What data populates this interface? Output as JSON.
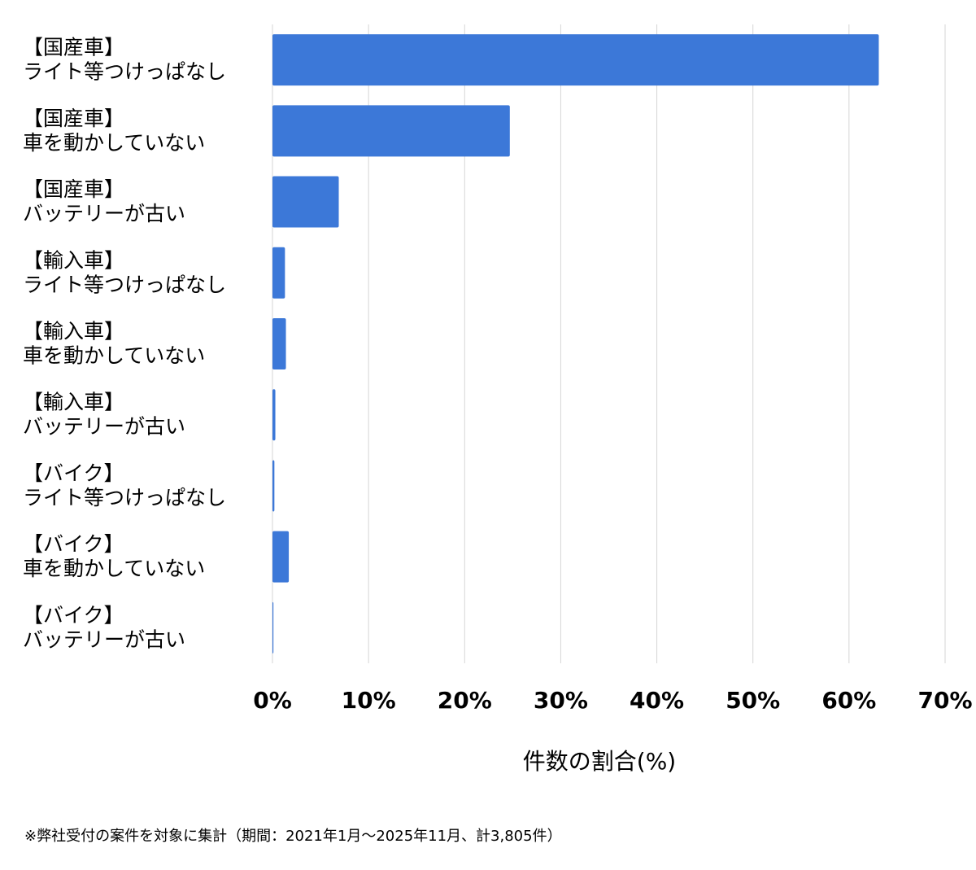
{
  "chart_data": {
    "type": "hbar",
    "categories": [
      [
        "【国産車】",
        "ライト等つけっぱなし"
      ],
      [
        "【国産車】",
        "車を動かしていない"
      ],
      [
        "【国産車】",
        "バッテリーが古い"
      ],
      [
        "【輸入車】",
        "ライト等つけっぱなし"
      ],
      [
        "【輸入車】",
        "車を動かしていない"
      ],
      [
        "【輸入車】",
        "バッテリーが古い"
      ],
      [
        "【バイク】",
        "ライト等つけっぱなし"
      ],
      [
        "【バイク】",
        "車を動かしていない"
      ],
      [
        "【バイク】",
        "バッテリーが古い"
      ]
    ],
    "values": [
      63.1,
      24.7,
      6.9,
      1.3,
      1.4,
      0.3,
      0.2,
      1.7,
      0.1
    ],
    "color": "#3c78d8",
    "xlim": [
      0,
      70
    ],
    "xticks": [
      {
        "value": 0,
        "label": "0%"
      },
      {
        "value": 10,
        "label": "10%"
      },
      {
        "value": 20,
        "label": "20%"
      },
      {
        "value": 30,
        "label": "30%"
      },
      {
        "value": 40,
        "label": "40%"
      },
      {
        "value": 50,
        "label": "50%"
      },
      {
        "value": 60,
        "label": "60%"
      },
      {
        "value": 70,
        "label": "70%"
      }
    ],
    "x_label": "件数の割合(%)",
    "grid": true,
    "footnote": "※弊社受付の案件を対象に集計（期間：2021年1月〜2025年11月、計3,805件）"
  }
}
